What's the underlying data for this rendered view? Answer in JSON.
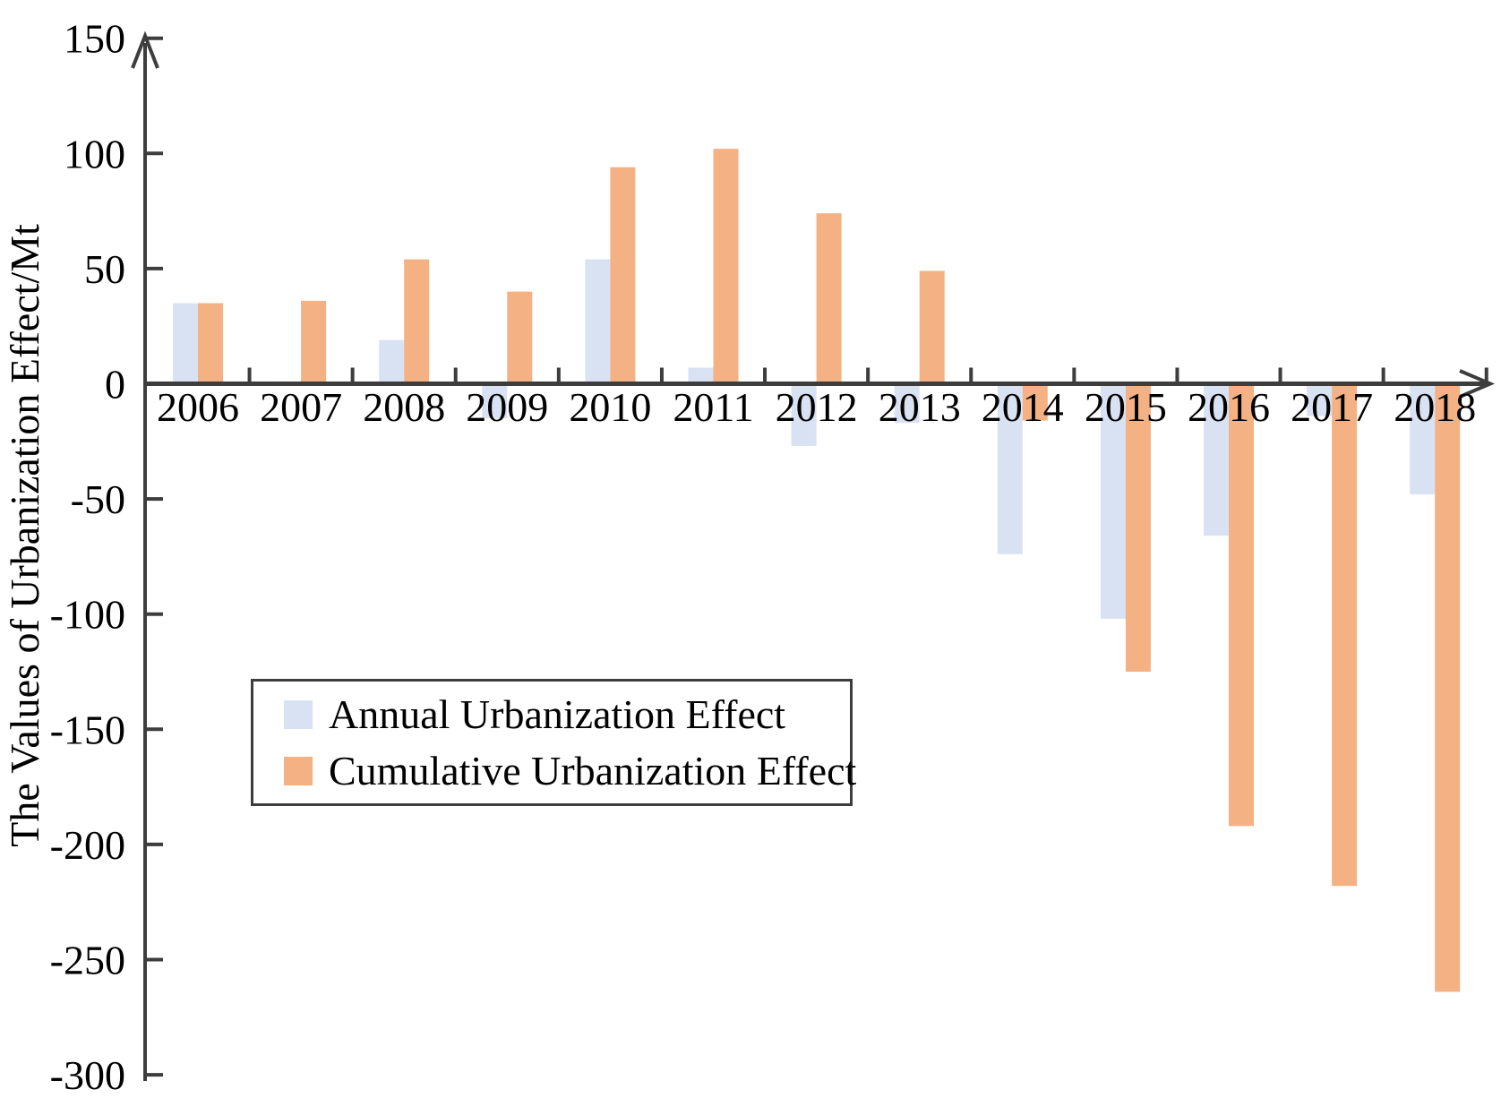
{
  "chart_data": {
    "type": "bar",
    "title": "",
    "ylabel": "The Values of Urbanization Effect/Mt",
    "xlabel": "",
    "categories": [
      "2006",
      "2007",
      "2008",
      "2009",
      "2010",
      "2011",
      "2012",
      "2013",
      "2014",
      "2015",
      "2016",
      "2017",
      "2018"
    ],
    "series": [
      {
        "name": "Annual Urbanization Effect",
        "color": "#D9E2F3",
        "values": [
          35,
          1,
          19,
          -15,
          54,
          7,
          -27,
          -17,
          -74,
          -102,
          -66,
          -14,
          -48
        ]
      },
      {
        "name": "Cumulative Urbanization Effect",
        "color": "#F4B183",
        "values": [
          35,
          36,
          54,
          40,
          94,
          102,
          74,
          49,
          -16,
          -125,
          -192,
          -218,
          -264
        ]
      }
    ],
    "ylim": [
      -300,
      150
    ],
    "yticks": [
      150,
      100,
      50,
      0,
      -50,
      -100,
      -150,
      -200,
      -250,
      -300
    ],
    "grid": false,
    "legend_position": "inside-left-middle",
    "axis_color": "#3d3d3d",
    "text_color": "#000000"
  }
}
